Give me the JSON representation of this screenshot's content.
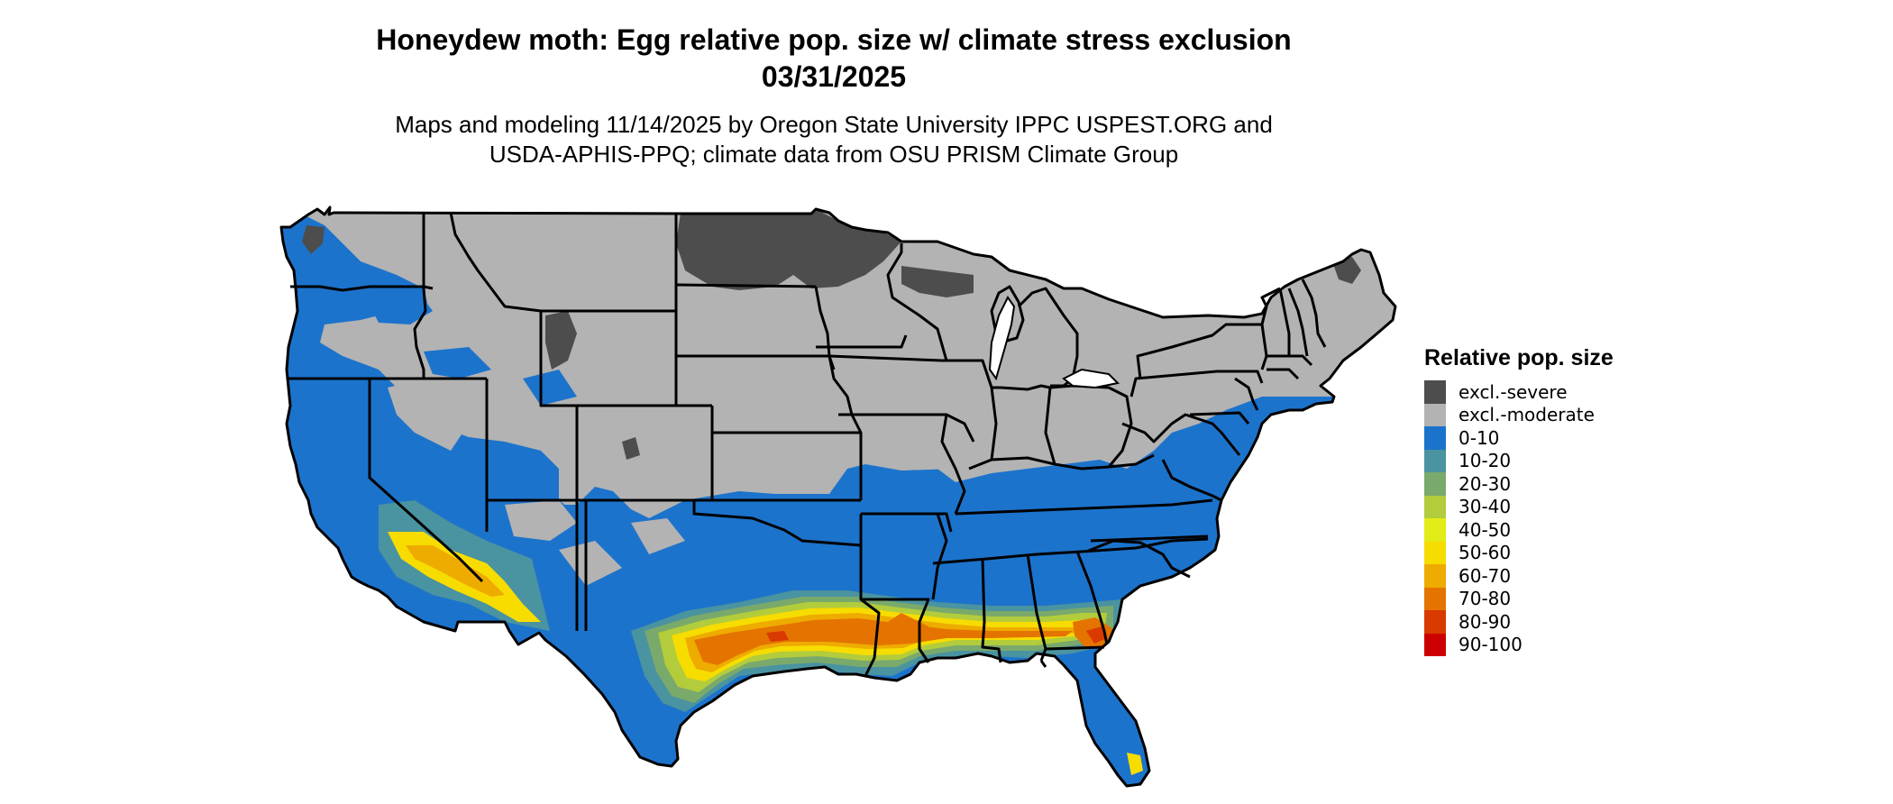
{
  "header": {
    "title_line1": "Honeydew moth: Egg relative pop. size w/ climate stress exclusion",
    "title_line2": "03/31/2025",
    "subtitle_line1": "Maps and modeling 11/14/2025 by Oregon State University IPPC USPEST.ORG and",
    "subtitle_line2": "USDA-APHIS-PPQ; climate data from OSU PRISM Climate Group"
  },
  "legend": {
    "title": "Relative pop. size",
    "items": [
      {
        "label": "excl.-severe",
        "color": "#4d4d4d"
      },
      {
        "label": "excl.-moderate",
        "color": "#b3b3b3"
      },
      {
        "label": "0-10",
        "color": "#1c73cc"
      },
      {
        "label": "10-20",
        "color": "#4a93a0"
      },
      {
        "label": "20-30",
        "color": "#7aa96c"
      },
      {
        "label": "30-40",
        "color": "#b2cc3c"
      },
      {
        "label": "40-50",
        "color": "#e3ec17"
      },
      {
        "label": "50-60",
        "color": "#f7dc00"
      },
      {
        "label": "60-70",
        "color": "#eeab00"
      },
      {
        "label": "70-80",
        "color": "#e47300"
      },
      {
        "label": "80-90",
        "color": "#d93a00"
      },
      {
        "label": "90-100",
        "color": "#cc0000"
      }
    ]
  },
  "map": {
    "region": "contiguous United States",
    "boundaries": "state outlines",
    "zones": [
      {
        "name": "excl.-severe",
        "areas": [
          "North Dakota",
          "northern Minnesota",
          "Michigan upper peninsula",
          "northern Maine",
          "mountain Wyoming"
        ]
      },
      {
        "name": "excl.-moderate",
        "areas": [
          "northern Rockies",
          "Great Plains",
          "Midwest",
          "Great Lakes",
          "Northeast",
          "Appalachians"
        ]
      },
      {
        "name": "0-10",
        "areas": [
          "Pacific coast",
          "Great Basin",
          "southern states",
          "Mid-Atlantic"
        ]
      },
      {
        "name": "20-90",
        "areas": [
          "Gulf Coast band",
          "desert Southwest",
          "southern Texas"
        ]
      }
    ]
  }
}
